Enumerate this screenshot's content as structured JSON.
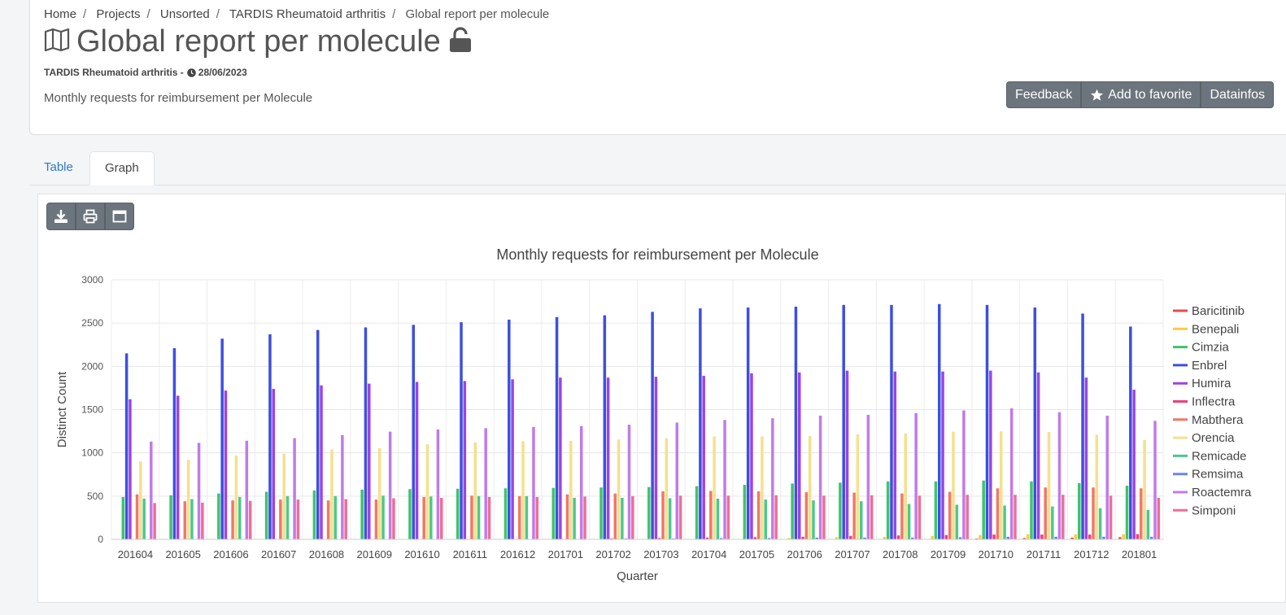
{
  "breadcrumb": [
    "Home",
    "Projects",
    "Unsorted",
    "TARDIS Rheumatoid arthritis",
    "Global report per molecule"
  ],
  "page": {
    "title": "Global report per molecule",
    "project": "TARDIS Rheumatoid arthritis -",
    "date": "28/06/2023",
    "description": "Monthly requests for reimbursement per Molecule"
  },
  "buttons": {
    "feedback": "Feedback",
    "favorite": "Add to favorite",
    "datainfos": "Datainfos"
  },
  "tabs": {
    "table": "Table",
    "graph": "Graph"
  },
  "icons": [
    "map-icon",
    "unlock-icon",
    "clock-icon",
    "star-icon",
    "download-icon",
    "print-icon",
    "window-icon"
  ],
  "chart_data": {
    "type": "bar",
    "title": "Monthly requests for reimbursement per Molecule",
    "xlabel": "Quarter",
    "ylabel": "Distinct Count",
    "ylim": [
      0,
      3000
    ],
    "yticks": [
      0,
      500,
      1000,
      1500,
      2000,
      2500,
      3000
    ],
    "grid": true,
    "legend_position": "right",
    "categories": [
      "201604",
      "201605",
      "201606",
      "201607",
      "201608",
      "201609",
      "201610",
      "201611",
      "201612",
      "201701",
      "201702",
      "201703",
      "201704",
      "201705",
      "201706",
      "201707",
      "201708",
      "201709",
      "201710",
      "201711",
      "201712",
      "201801"
    ],
    "series": [
      {
        "name": "Baricitinib",
        "color": "#e74c4c",
        "values": [
          0,
          0,
          0,
          0,
          0,
          0,
          0,
          0,
          0,
          0,
          0,
          0,
          0,
          0,
          0,
          0,
          0,
          5,
          10,
          15,
          20,
          25
        ]
      },
      {
        "name": "Benepali",
        "color": "#f5cd4a",
        "values": [
          0,
          0,
          0,
          0,
          0,
          0,
          0,
          0,
          0,
          0,
          0,
          0,
          0,
          5,
          15,
          25,
          30,
          40,
          50,
          60,
          60,
          60
        ]
      },
      {
        "name": "Cimzia",
        "color": "#3cc46b",
        "values": [
          490,
          510,
          530,
          550,
          565,
          575,
          580,
          585,
          590,
          595,
          600,
          605,
          615,
          630,
          645,
          655,
          670,
          670,
          680,
          670,
          650,
          620
        ]
      },
      {
        "name": "Enbrel",
        "color": "#3d4fe0",
        "values": [
          2150,
          2210,
          2320,
          2370,
          2420,
          2450,
          2480,
          2510,
          2540,
          2570,
          2590,
          2630,
          2670,
          2680,
          2690,
          2710,
          2710,
          2720,
          2710,
          2680,
          2610,
          2460
        ]
      },
      {
        "name": "Humira",
        "color": "#9b44e6",
        "values": [
          1620,
          1660,
          1720,
          1740,
          1780,
          1800,
          1820,
          1830,
          1850,
          1870,
          1870,
          1880,
          1890,
          1920,
          1930,
          1950,
          1940,
          1940,
          1950,
          1930,
          1870,
          1730
        ]
      },
      {
        "name": "Inflectra",
        "color": "#ec407a",
        "values": [
          0,
          0,
          0,
          0,
          0,
          0,
          0,
          0,
          0,
          5,
          10,
          15,
          20,
          25,
          30,
          40,
          45,
          50,
          55,
          55,
          55,
          60
        ]
      },
      {
        "name": "Mabthera",
        "color": "#f07868",
        "values": [
          520,
          440,
          450,
          460,
          450,
          460,
          490,
          505,
          500,
          520,
          530,
          555,
          560,
          555,
          545,
          540,
          530,
          550,
          590,
          600,
          600,
          590
        ]
      },
      {
        "name": "Orencia",
        "color": "#f5e08c",
        "values": [
          900,
          920,
          970,
          990,
          1040,
          1055,
          1100,
          1120,
          1135,
          1140,
          1155,
          1170,
          1190,
          1190,
          1195,
          1215,
          1225,
          1245,
          1250,
          1240,
          1210,
          1150
        ]
      },
      {
        "name": "Remicade",
        "color": "#4cc88a",
        "values": [
          470,
          465,
          490,
          500,
          500,
          505,
          495,
          500,
          500,
          480,
          480,
          475,
          470,
          460,
          450,
          440,
          410,
          400,
          390,
          380,
          360,
          340
        ]
      },
      {
        "name": "Remsima",
        "color": "#6a86e8",
        "values": [
          0,
          0,
          0,
          0,
          0,
          0,
          0,
          0,
          0,
          5,
          10,
          10,
          15,
          15,
          20,
          20,
          20,
          25,
          30,
          30,
          30,
          30
        ]
      },
      {
        "name": "Roactemra",
        "color": "#c07be8",
        "values": [
          1130,
          1115,
          1140,
          1170,
          1205,
          1245,
          1270,
          1285,
          1300,
          1310,
          1325,
          1350,
          1380,
          1400,
          1430,
          1440,
          1460,
          1490,
          1515,
          1470,
          1430,
          1370
        ]
      },
      {
        "name": "Simponi",
        "color": "#ef6e96",
        "values": [
          420,
          425,
          445,
          460,
          465,
          475,
          480,
          490,
          490,
          495,
          500,
          505,
          505,
          510,
          505,
          510,
          505,
          515,
          515,
          515,
          505,
          480
        ]
      }
    ]
  }
}
